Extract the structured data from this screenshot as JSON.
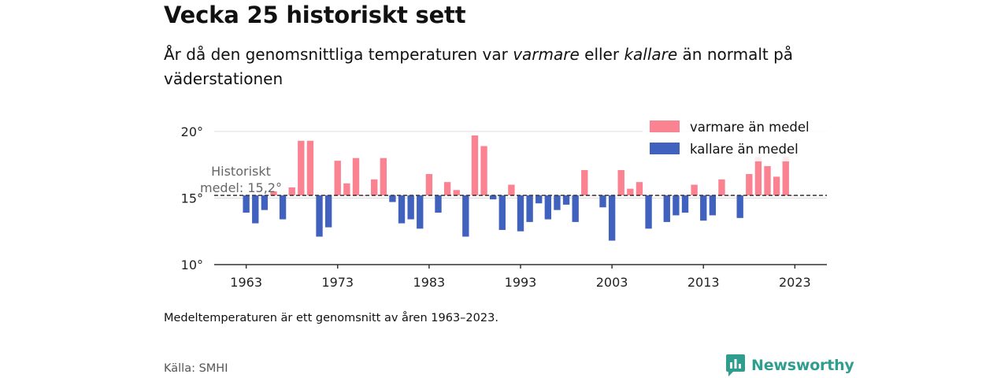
{
  "title": "Vecka 25 historiskt sett",
  "subtitle": {
    "part1": "År då den genomsnittliga temperaturen var ",
    "warm_word": "varmare",
    "part2": " eller ",
    "cold_word": "kallare",
    "part3": " än normalt på väderstationen"
  },
  "note": "Medeltemperaturen är ett genomsnitt av åren 1963–2023.",
  "source": "Källa: SMHI",
  "brand": {
    "name": "Newsworthy",
    "icon": "newsworthy-logo-icon",
    "color": "#2f9e8f"
  },
  "colors": {
    "warm": "#fb8290",
    "cold": "#4161bf",
    "axis": "#333333",
    "grid": "#dddddd"
  },
  "chart_data": {
    "type": "bar",
    "baseline": 15.2,
    "baseline_label_line1": "Historiskt",
    "baseline_label_line2": "medel: 15,2°",
    "ylim": [
      10,
      21
    ],
    "yticks": [
      10,
      15,
      20
    ],
    "ytick_labels": [
      "10°",
      "15°",
      "20°"
    ],
    "xticks": [
      1963,
      1973,
      1983,
      1993,
      2003,
      2013,
      2023
    ],
    "xlim": [
      1959.5,
      2026.5
    ],
    "grid": true,
    "legend_position": "top-right",
    "legend": [
      {
        "key": "warm",
        "label": "varmare än medel"
      },
      {
        "key": "cold",
        "label": "kallare än medel"
      }
    ],
    "x": [
      1963,
      1964,
      1965,
      1966,
      1967,
      1968,
      1969,
      1970,
      1971,
      1972,
      1973,
      1974,
      1975,
      1976,
      1977,
      1978,
      1979,
      1980,
      1981,
      1982,
      1983,
      1984,
      1985,
      1986,
      1987,
      1988,
      1989,
      1990,
      1991,
      1992,
      1993,
      1994,
      1995,
      1996,
      1997,
      1998,
      1999,
      2000,
      2001,
      2002,
      2003,
      2004,
      2005,
      2006,
      2007,
      2008,
      2009,
      2010,
      2011,
      2012,
      2013,
      2014,
      2015,
      2016,
      2017,
      2018,
      2019,
      2020,
      2021,
      2022,
      2023
    ],
    "values": [
      13.9,
      13.1,
      14.1,
      15.5,
      13.4,
      15.8,
      19.3,
      19.3,
      12.1,
      12.8,
      17.8,
      16.1,
      18.0,
      15.2,
      16.4,
      18.0,
      14.7,
      13.1,
      13.4,
      12.7,
      16.8,
      13.9,
      16.2,
      15.6,
      12.1,
      19.7,
      18.9,
      14.9,
      12.6,
      16.0,
      12.5,
      13.2,
      14.6,
      13.4,
      14.1,
      14.5,
      13.2,
      17.1,
      15.2,
      14.3,
      11.8,
      17.1,
      15.7,
      16.2,
      12.7,
      15.2,
      13.2,
      13.7,
      13.9,
      16.0,
      13.3,
      13.7,
      16.4,
      15.2,
      13.5,
      16.8,
      18.1,
      17.4,
      16.6,
      18.1,
      15.2
    ]
  }
}
